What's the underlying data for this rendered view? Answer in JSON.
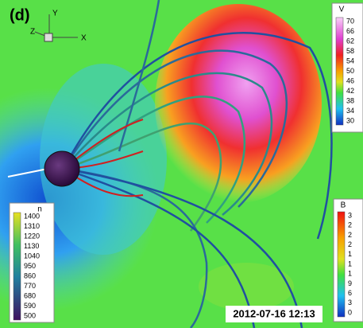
{
  "panel_label": "(d)",
  "axes": {
    "y": "Y",
    "z": "Z",
    "x": "X"
  },
  "colorbars": [
    {
      "title": "V",
      "labels": [
        "70",
        "66",
        "62",
        "58",
        "54",
        "50",
        "46",
        "42",
        "38",
        "34",
        "30"
      ]
    },
    {
      "title": "B",
      "labels": [
        "3",
        "2",
        "2",
        "2",
        "1",
        "1",
        "1",
        "9",
        "6",
        "3",
        "0"
      ]
    },
    {
      "title": "n",
      "labels": [
        "1400",
        "1310",
        "1220",
        "1130",
        "1040",
        "950",
        "860",
        "770",
        "680",
        "590",
        "500"
      ]
    }
  ],
  "timestamp": "2012-07-16 12:13"
}
